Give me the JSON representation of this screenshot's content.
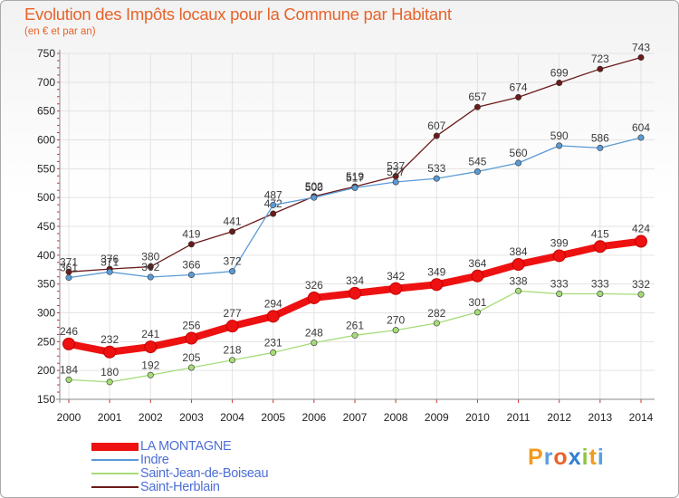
{
  "chart_data": {
    "type": "line",
    "title": "Evolution des Impôts locaux pour la Commune par Habitant",
    "subtitle": "(en € et par an)",
    "xlabel": "",
    "ylabel": "",
    "ylim": [
      150,
      750
    ],
    "yticks": [
      150,
      200,
      250,
      300,
      350,
      400,
      450,
      500,
      550,
      600,
      650,
      700,
      750
    ],
    "categories": [
      "2000",
      "2001",
      "2002",
      "2003",
      "2004",
      "2005",
      "2006",
      "2007",
      "2008",
      "2009",
      "2010",
      "2011",
      "2012",
      "2013",
      "2014"
    ],
    "series": [
      {
        "name": "Saint-Herblain",
        "color": "#6b1a1a",
        "values": [
          371,
          376,
          380,
          419,
          441,
          472,
          502,
          519,
          537,
          607,
          657,
          674,
          699,
          723,
          743
        ]
      },
      {
        "name": "Indre",
        "color": "#5b9bd5",
        "values": [
          361,
          371,
          362,
          366,
          372,
          487,
          500,
          517,
          527,
          533,
          545,
          560,
          590,
          586,
          604
        ]
      },
      {
        "name": "Saint-Jean-de-Boiseau",
        "color": "#a6dc78",
        "values": [
          184,
          180,
          192,
          205,
          218,
          231,
          248,
          261,
          270,
          282,
          301,
          338,
          333,
          333,
          332
        ]
      },
      {
        "name": "LA MONTAGNE",
        "color": "#ee1111",
        "values": [
          246,
          232,
          241,
          256,
          277,
          294,
          326,
          334,
          342,
          349,
          364,
          384,
          399,
          415,
          424
        ]
      }
    ],
    "legend": [
      "LA MONTAGNE",
      "Indre",
      "Saint-Jean-de-Boiseau",
      "Saint-Herblain"
    ],
    "legend_position": "bottom-left",
    "grid": true
  },
  "logo": {
    "text": "Proxiti",
    "letters": [
      "P",
      "r",
      "o",
      "x",
      "i",
      "t",
      "i"
    ],
    "colors": [
      "#f29a1d",
      "#5aa0e0",
      "#e8632b",
      "#2f7fd0",
      "#8cc63f",
      "#f29a1d",
      "#5aa0e0"
    ]
  }
}
